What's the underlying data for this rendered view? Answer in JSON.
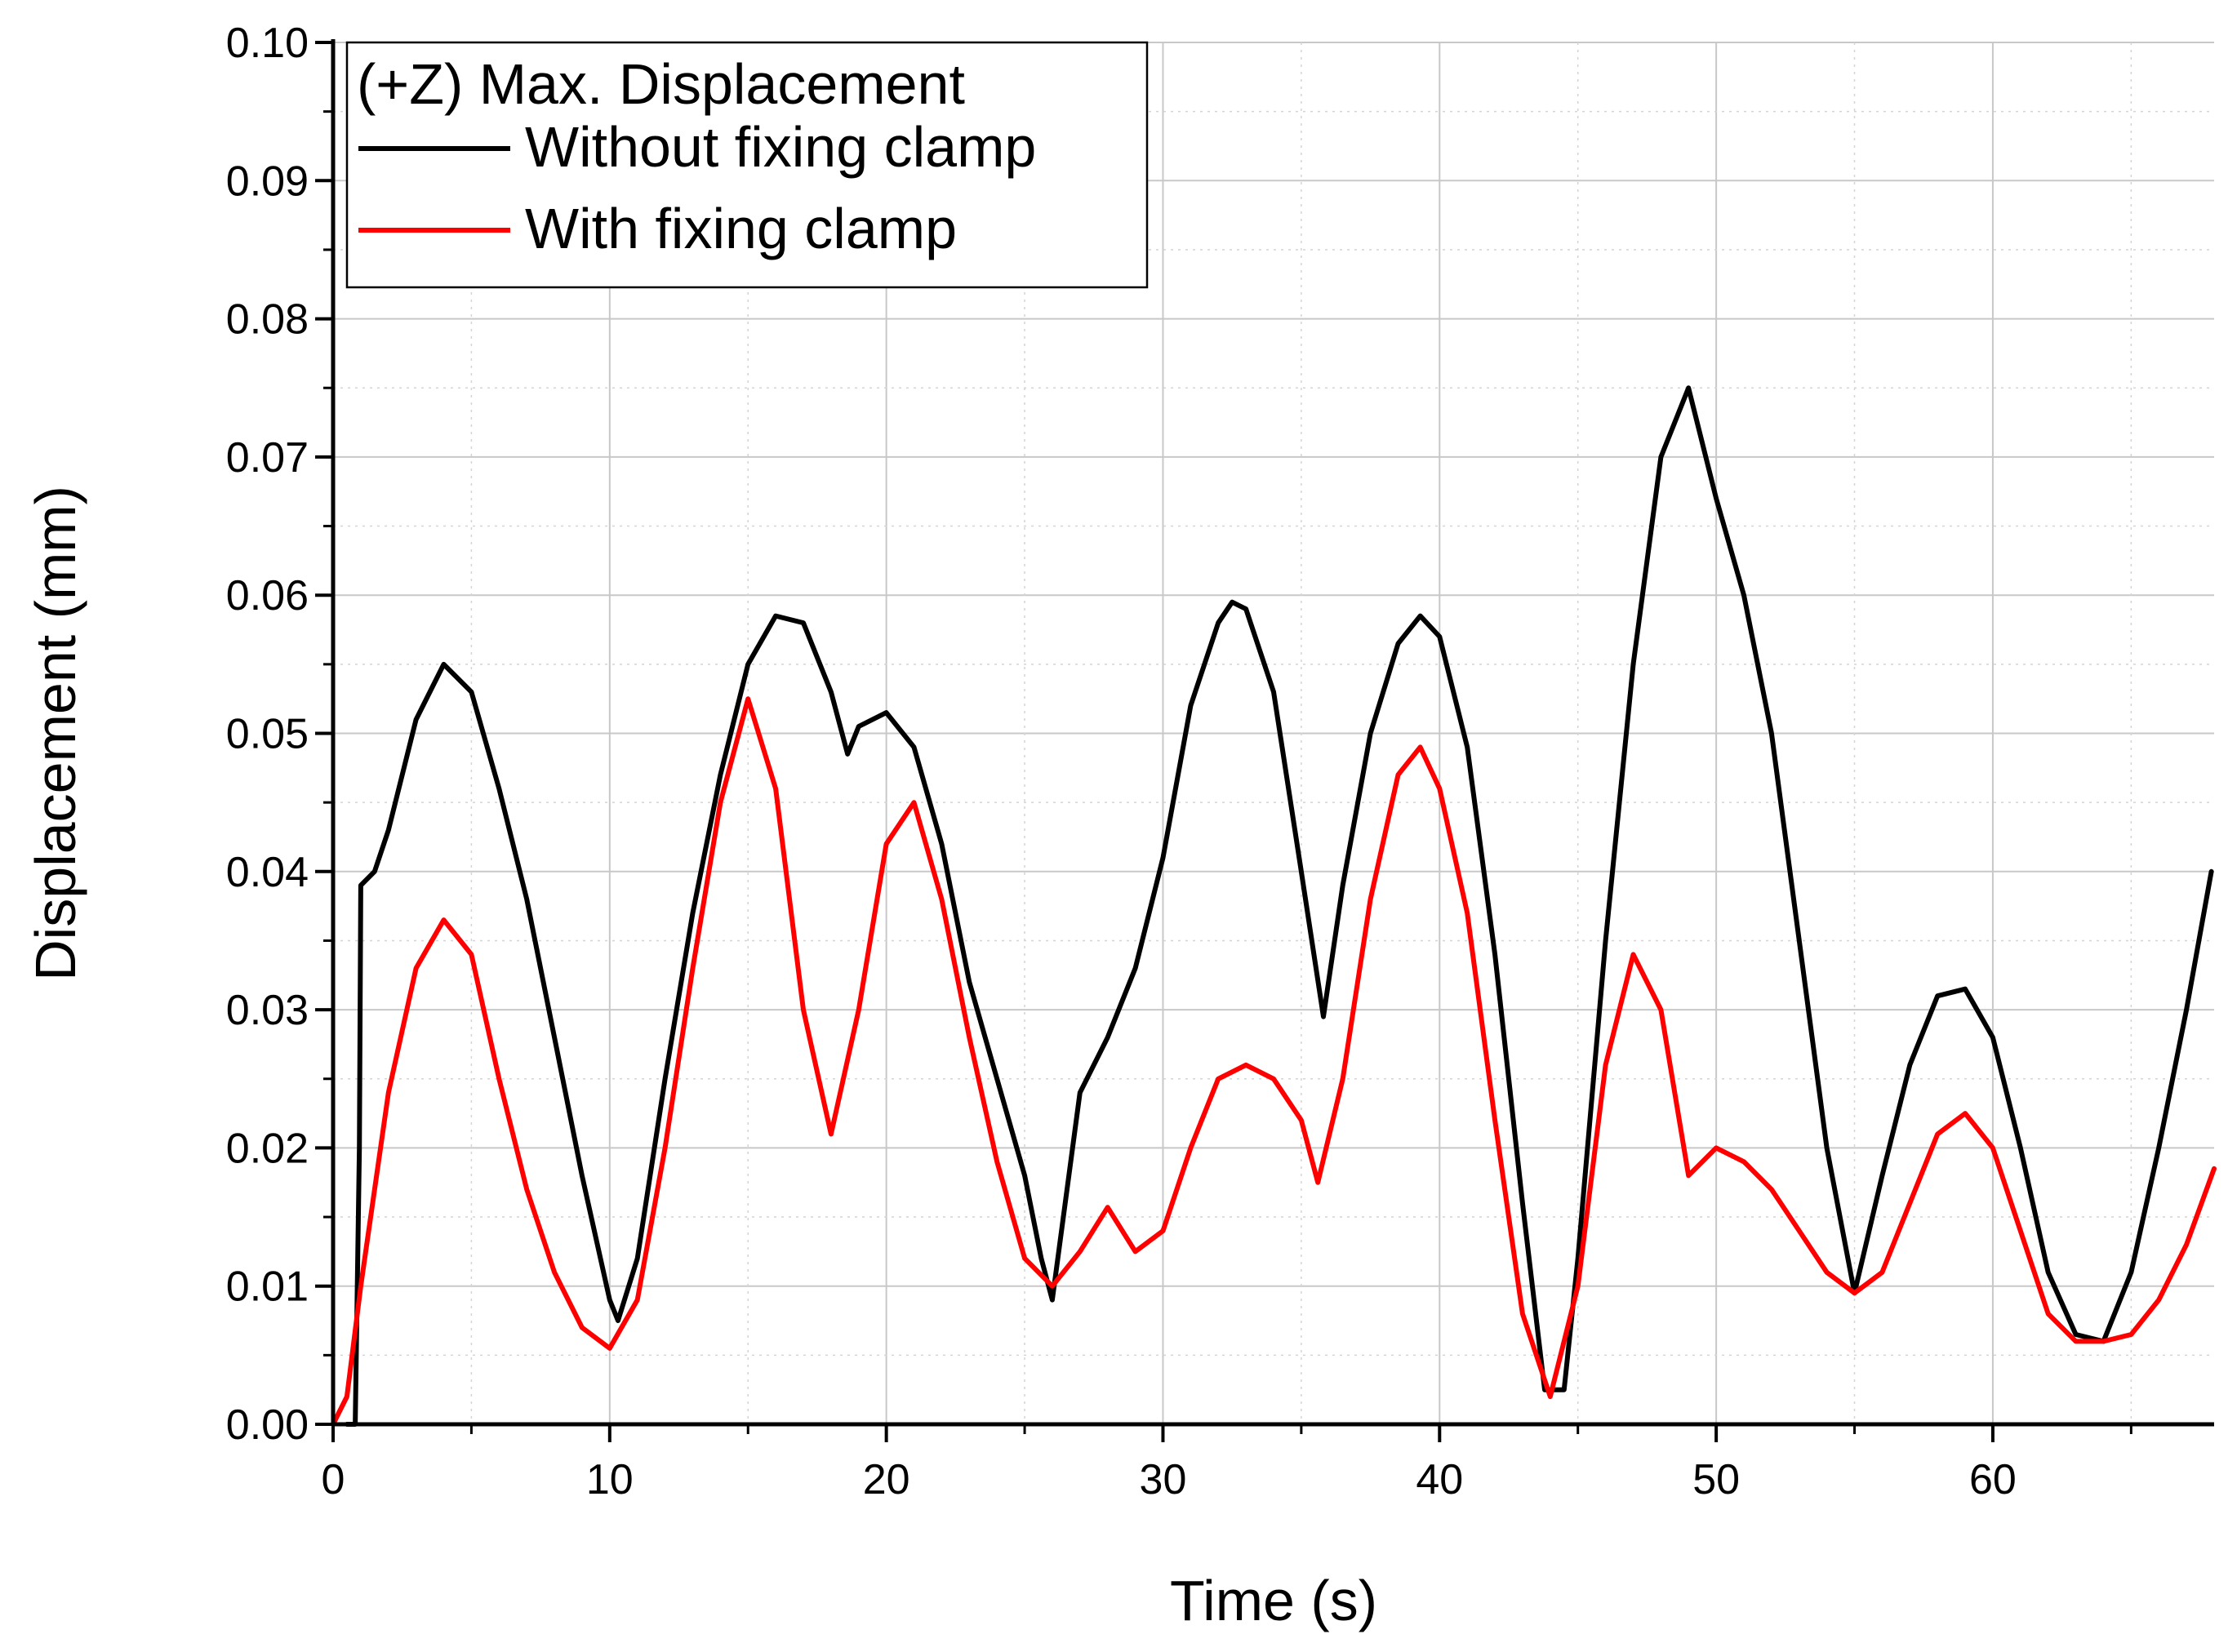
{
  "chart_data": {
    "type": "line",
    "xlabel": "Time (s)",
    "ylabel": "Displacement (mm)",
    "xlim": [
      0,
      68
    ],
    "ylim": [
      0,
      0.1
    ],
    "x_ticks": [
      0,
      10,
      20,
      30,
      40,
      50,
      60
    ],
    "x_tick_labels": [
      "0",
      "10",
      "20",
      "30",
      "40",
      "50",
      "60"
    ],
    "y_ticks": [
      0,
      0.01,
      0.02,
      0.03,
      0.04,
      0.05,
      0.06,
      0.07,
      0.08,
      0.09,
      0.1
    ],
    "y_tick_labels": [
      "0.00",
      "0.01",
      "0.02",
      "0.03",
      "0.04",
      "0.05",
      "0.06",
      "0.07",
      "0.08",
      "0.09",
      "0.10"
    ],
    "grid": true,
    "legend": {
      "title": "(+Z) Max. Displacement",
      "placement": "top-left"
    },
    "series": [
      {
        "name": "Without fixing clamp",
        "color": "#000000",
        "points": [
          [
            0.5,
            0.0
          ],
          [
            0.8,
            0.0
          ],
          [
            0.95,
            0.02
          ],
          [
            1.0,
            0.039
          ],
          [
            1.5,
            0.04
          ],
          [
            2.0,
            0.043
          ],
          [
            3.0,
            0.051
          ],
          [
            4.0,
            0.055
          ],
          [
            5.0,
            0.053
          ],
          [
            6.0,
            0.046
          ],
          [
            7.0,
            0.038
          ],
          [
            8.0,
            0.028
          ],
          [
            9.0,
            0.018
          ],
          [
            10.0,
            0.009
          ],
          [
            10.3,
            0.0075
          ],
          [
            11.0,
            0.012
          ],
          [
            12.0,
            0.025
          ],
          [
            13.0,
            0.037
          ],
          [
            14.0,
            0.047
          ],
          [
            15.0,
            0.055
          ],
          [
            16.0,
            0.0585
          ],
          [
            17.0,
            0.058
          ],
          [
            18.0,
            0.053
          ],
          [
            18.6,
            0.0485
          ],
          [
            19.0,
            0.0505
          ],
          [
            20.0,
            0.0515
          ],
          [
            21.0,
            0.049
          ],
          [
            22.0,
            0.042
          ],
          [
            23.0,
            0.032
          ],
          [
            24.0,
            0.025
          ],
          [
            25.0,
            0.018
          ],
          [
            25.6,
            0.012
          ],
          [
            26.0,
            0.009
          ],
          [
            27.0,
            0.024
          ],
          [
            28.0,
            0.028
          ],
          [
            29.0,
            0.033
          ],
          [
            30.0,
            0.041
          ],
          [
            31.0,
            0.052
          ],
          [
            32.0,
            0.058
          ],
          [
            32.5,
            0.0595
          ],
          [
            33.0,
            0.059
          ],
          [
            34.0,
            0.053
          ],
          [
            35.0,
            0.04
          ],
          [
            35.8,
            0.0295
          ],
          [
            36.5,
            0.039
          ],
          [
            37.5,
            0.05
          ],
          [
            38.5,
            0.0565
          ],
          [
            39.3,
            0.0585
          ],
          [
            40.0,
            0.057
          ],
          [
            41.0,
            0.049
          ],
          [
            42.0,
            0.034
          ],
          [
            43.0,
            0.016
          ],
          [
            43.8,
            0.0025
          ],
          [
            44.5,
            0.0025
          ],
          [
            45.0,
            0.012
          ],
          [
            46.0,
            0.035
          ],
          [
            47.0,
            0.055
          ],
          [
            48.0,
            0.07
          ],
          [
            49.0,
            0.075
          ],
          [
            50.0,
            0.067
          ],
          [
            51.0,
            0.06
          ],
          [
            52.0,
            0.05
          ],
          [
            53.0,
            0.035
          ],
          [
            54.0,
            0.02
          ],
          [
            55.0,
            0.0095
          ],
          [
            56.0,
            0.018
          ],
          [
            57.0,
            0.026
          ],
          [
            58.0,
            0.031
          ],
          [
            59.0,
            0.0315
          ],
          [
            60.0,
            0.028
          ],
          [
            61.0,
            0.02
          ],
          [
            62.0,
            0.011
          ],
          [
            63.0,
            0.0065
          ],
          [
            64.0,
            0.006
          ],
          [
            65.0,
            0.011
          ],
          [
            66.0,
            0.02
          ],
          [
            67.0,
            0.03
          ],
          [
            67.9,
            0.04
          ]
        ]
      },
      {
        "name": "With fixing clamp",
        "color": "#ff0000",
        "points": [
          [
            0.0,
            0.0
          ],
          [
            0.5,
            0.002
          ],
          [
            1.0,
            0.01
          ],
          [
            2.0,
            0.024
          ],
          [
            3.0,
            0.033
          ],
          [
            4.0,
            0.0365
          ],
          [
            5.0,
            0.034
          ],
          [
            6.0,
            0.025
          ],
          [
            7.0,
            0.017
          ],
          [
            8.0,
            0.011
          ],
          [
            9.0,
            0.007
          ],
          [
            10.0,
            0.0055
          ],
          [
            11.0,
            0.009
          ],
          [
            12.0,
            0.02
          ],
          [
            13.0,
            0.033
          ],
          [
            14.0,
            0.045
          ],
          [
            15.0,
            0.0525
          ],
          [
            16.0,
            0.046
          ],
          [
            17.0,
            0.03
          ],
          [
            18.0,
            0.021
          ],
          [
            19.0,
            0.03
          ],
          [
            20.0,
            0.042
          ],
          [
            21.0,
            0.045
          ],
          [
            22.0,
            0.038
          ],
          [
            23.0,
            0.028
          ],
          [
            24.0,
            0.019
          ],
          [
            25.0,
            0.012
          ],
          [
            26.0,
            0.01
          ],
          [
            27.0,
            0.0125
          ],
          [
            28.0,
            0.0157
          ],
          [
            29.0,
            0.0125
          ],
          [
            30.0,
            0.014
          ],
          [
            31.0,
            0.02
          ],
          [
            32.0,
            0.025
          ],
          [
            33.0,
            0.026
          ],
          [
            34.0,
            0.025
          ],
          [
            35.0,
            0.022
          ],
          [
            35.6,
            0.0175
          ],
          [
            36.5,
            0.025
          ],
          [
            37.5,
            0.038
          ],
          [
            38.5,
            0.047
          ],
          [
            39.3,
            0.049
          ],
          [
            40.0,
            0.046
          ],
          [
            41.0,
            0.037
          ],
          [
            42.0,
            0.022
          ],
          [
            43.0,
            0.008
          ],
          [
            44.0,
            0.002
          ],
          [
            45.0,
            0.01
          ],
          [
            46.0,
            0.026
          ],
          [
            47.0,
            0.034
          ],
          [
            48.0,
            0.03
          ],
          [
            49.0,
            0.018
          ],
          [
            50.0,
            0.02
          ],
          [
            51.0,
            0.019
          ],
          [
            52.0,
            0.017
          ],
          [
            53.0,
            0.014
          ],
          [
            54.0,
            0.011
          ],
          [
            55.0,
            0.0095
          ],
          [
            56.0,
            0.011
          ],
          [
            57.0,
            0.016
          ],
          [
            58.0,
            0.021
          ],
          [
            59.0,
            0.0225
          ],
          [
            60.0,
            0.02
          ],
          [
            61.0,
            0.014
          ],
          [
            62.0,
            0.008
          ],
          [
            63.0,
            0.006
          ],
          [
            64.0,
            0.006
          ],
          [
            65.0,
            0.0065
          ],
          [
            66.0,
            0.009
          ],
          [
            67.0,
            0.013
          ],
          [
            68.0,
            0.0185
          ]
        ]
      }
    ]
  }
}
